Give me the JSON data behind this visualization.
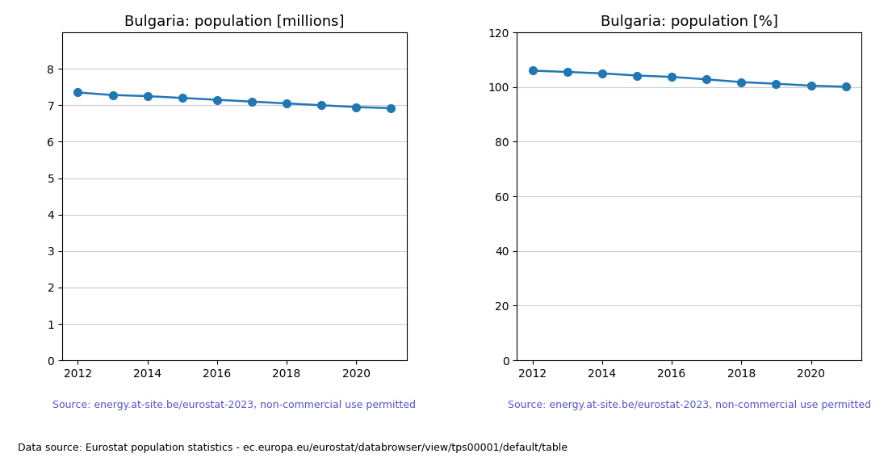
{
  "years": [
    2012,
    2013,
    2014,
    2015,
    2016,
    2017,
    2018,
    2019,
    2020,
    2021
  ],
  "population_millions": [
    7.35,
    7.28,
    7.25,
    7.2,
    7.15,
    7.1,
    7.05,
    7.0,
    6.95,
    6.92
  ],
  "population_percent": [
    106.0,
    105.5,
    105.0,
    104.2,
    103.7,
    102.8,
    101.8,
    101.2,
    100.5,
    100.1
  ],
  "title_millions": "Bulgaria: population [millions]",
  "title_percent": "Bulgaria: population [%]",
  "ylim_millions": [
    0,
    9
  ],
  "ylim_percent": [
    0,
    120
  ],
  "yticks_millions": [
    0,
    1,
    2,
    3,
    4,
    5,
    6,
    7,
    8
  ],
  "yticks_percent": [
    0,
    20,
    40,
    60,
    80,
    100,
    120
  ],
  "line_color": "#1f77b4",
  "marker": "o",
  "markersize": 7,
  "linewidth": 1.8,
  "source_text": "Source: energy.at-site.be/eurostat-2023, non-commercial use permitted",
  "source_color": "#5555cc",
  "footer_text": "Data source: Eurostat population statistics - ec.europa.eu/eurostat/databrowser/view/tps00001/default/table",
  "footer_color": "#000000",
  "title_fontsize": 13,
  "tick_fontsize": 10,
  "source_fontsize": 9,
  "footer_fontsize": 9,
  "bg_color": "#ffffff",
  "grid_color": "#cccccc",
  "xticks": [
    2012,
    2014,
    2016,
    2018,
    2020
  ]
}
